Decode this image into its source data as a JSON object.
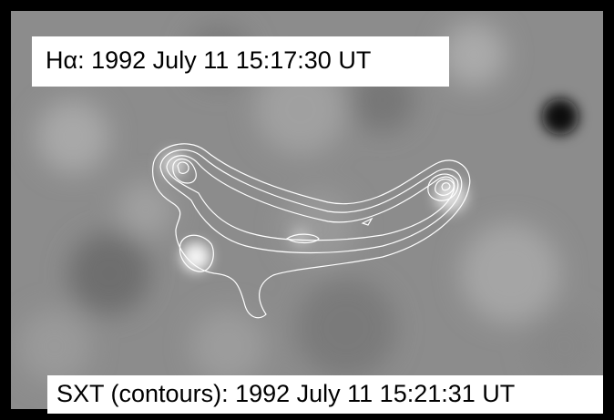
{
  "labels": {
    "top": "Hα: 1992 July 11 15:17:30 UT",
    "bottom": "SXT (contours): 1992 July 11 15:21:31 UT"
  }
}
